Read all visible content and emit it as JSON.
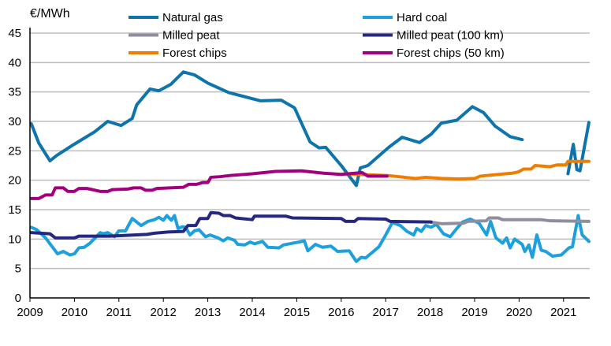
{
  "chart_data": {
    "type": "line",
    "ylabel": "€/MWh",
    "ylim": [
      0,
      45
    ],
    "yticks": [
      0,
      5,
      10,
      15,
      20,
      25,
      30,
      35,
      40,
      45
    ],
    "xlim": [
      2009,
      2021.6
    ],
    "xticks": [
      "2009",
      "2010",
      "2011",
      "2012",
      "2013",
      "2014",
      "2015",
      "2016",
      "2017",
      "2018",
      "2019",
      "2020",
      "2021"
    ],
    "grid": true,
    "legend_position": "top",
    "series": [
      {
        "name": "Natural gas",
        "color": "#0f74aa",
        "segments": [
          [
            [
              2009.03,
              29.6
            ],
            [
              2009.2,
              26.3
            ],
            [
              2009.45,
              23.3
            ],
            [
              2009.6,
              24.2
            ],
            [
              2009.97,
              26
            ],
            [
              2010.45,
              28.2
            ],
            [
              2010.75,
              30
            ],
            [
              2011.05,
              29.3
            ],
            [
              2011.3,
              30.5
            ],
            [
              2011.4,
              32.8
            ],
            [
              2011.7,
              35.5
            ],
            [
              2011.9,
              35.2
            ],
            [
              2012.17,
              36.3
            ],
            [
              2012.45,
              38.4
            ],
            [
              2012.7,
              37.9
            ],
            [
              2013.0,
              36.5
            ],
            [
              2013.47,
              34.9
            ],
            [
              2014.18,
              33.5
            ],
            [
              2014.65,
              33.6
            ],
            [
              2014.95,
              32.3
            ],
            [
              2015.3,
              26.5
            ],
            [
              2015.5,
              25.5
            ],
            [
              2015.65,
              25.6
            ],
            [
              2016.0,
              22.5
            ],
            [
              2016.34,
              19.1
            ],
            [
              2016.43,
              22.1
            ],
            [
              2016.6,
              22.5
            ],
            [
              2017.07,
              25.6
            ],
            [
              2017.37,
              27.3
            ],
            [
              2017.76,
              26.4
            ],
            [
              2018.02,
              27.8
            ],
            [
              2018.25,
              29.7
            ],
            [
              2018.6,
              30.2
            ],
            [
              2018.95,
              32.5
            ],
            [
              2019.2,
              31.5
            ],
            [
              2019.46,
              29.2
            ],
            [
              2019.8,
              27.4
            ],
            [
              2020.07,
              26.9
            ]
          ],
          [
            [
              2021.1,
              21.1
            ],
            [
              2021.22,
              26.1
            ],
            [
              2021.3,
              21.8
            ],
            [
              2021.37,
              21.6
            ],
            [
              2021.57,
              29.8
            ]
          ]
        ]
      },
      {
        "name": "Hard coal",
        "color": "#1ea0dc",
        "segments": [
          [
            [
              2009.03,
              12.0
            ],
            [
              2009.15,
              11.6
            ],
            [
              2009.35,
              10.2
            ],
            [
              2009.62,
              7.5
            ],
            [
              2009.75,
              7.9
            ],
            [
              2009.9,
              7.3
            ],
            [
              2010.0,
              7.5
            ],
            [
              2010.1,
              8.5
            ],
            [
              2010.22,
              8.6
            ],
            [
              2010.35,
              9.3
            ],
            [
              2010.58,
              11.1
            ],
            [
              2010.65,
              10.9
            ],
            [
              2010.75,
              11.1
            ],
            [
              2010.9,
              10.4
            ],
            [
              2011.0,
              11.4
            ],
            [
              2011.15,
              11.4
            ],
            [
              2011.3,
              13.5
            ],
            [
              2011.5,
              12.3
            ],
            [
              2011.65,
              13.0
            ],
            [
              2011.8,
              13.3
            ],
            [
              2011.9,
              13.7
            ],
            [
              2012.0,
              13.2
            ],
            [
              2012.08,
              14.0
            ],
            [
              2012.18,
              13.2
            ],
            [
              2012.25,
              14.0
            ],
            [
              2012.33,
              11.8
            ],
            [
              2012.43,
              12.1
            ],
            [
              2012.5,
              12.0
            ],
            [
              2012.6,
              10.7
            ],
            [
              2012.7,
              11.4
            ],
            [
              2012.8,
              11.6
            ],
            [
              2012.95,
              10.4
            ],
            [
              2013.05,
              10.7
            ],
            [
              2013.23,
              10.2
            ],
            [
              2013.35,
              9.7
            ],
            [
              2013.45,
              10.2
            ],
            [
              2013.6,
              9.8
            ],
            [
              2013.67,
              9.1
            ],
            [
              2013.83,
              9.0
            ],
            [
              2013.95,
              9.5
            ],
            [
              2014.05,
              9.2
            ],
            [
              2014.23,
              9.6
            ],
            [
              2014.35,
              8.6
            ],
            [
              2014.6,
              8.5
            ],
            [
              2014.7,
              9.0
            ],
            [
              2015.05,
              9.5
            ],
            [
              2015.17,
              9.7
            ],
            [
              2015.25,
              8.0
            ],
            [
              2015.42,
              9.1
            ],
            [
              2015.58,
              8.6
            ],
            [
              2015.77,
              8.8
            ],
            [
              2015.92,
              7.9
            ],
            [
              2016.18,
              8.0
            ],
            [
              2016.34,
              6.2
            ],
            [
              2016.45,
              6.9
            ],
            [
              2016.55,
              6.8
            ],
            [
              2016.85,
              8.7
            ],
            [
              2017.0,
              10.7
            ],
            [
              2017.15,
              12.8
            ],
            [
              2017.33,
              12.3
            ],
            [
              2017.48,
              11.3
            ],
            [
              2017.63,
              10.7
            ],
            [
              2017.7,
              11.8
            ],
            [
              2017.8,
              11.3
            ],
            [
              2017.9,
              12.3
            ],
            [
              2018.02,
              12.0
            ],
            [
              2018.14,
              12.5
            ],
            [
              2018.3,
              10.9
            ],
            [
              2018.45,
              10.4
            ],
            [
              2018.6,
              11.8
            ],
            [
              2018.73,
              12.9
            ],
            [
              2018.9,
              13.4
            ],
            [
              2019.1,
              12.7
            ],
            [
              2019.27,
              10.7
            ],
            [
              2019.36,
              13.0
            ],
            [
              2019.48,
              10.2
            ],
            [
              2019.63,
              9.3
            ],
            [
              2019.72,
              10.2
            ],
            [
              2019.8,
              8.5
            ],
            [
              2019.9,
              10.0
            ],
            [
              2020.07,
              9.1
            ],
            [
              2020.13,
              7.9
            ],
            [
              2020.22,
              9.0
            ],
            [
              2020.3,
              6.9
            ],
            [
              2020.4,
              10.7
            ],
            [
              2020.5,
              8.1
            ],
            [
              2020.6,
              7.9
            ],
            [
              2020.75,
              7.1
            ],
            [
              2020.95,
              7.3
            ],
            [
              2021.12,
              8.5
            ],
            [
              2021.2,
              8.7
            ],
            [
              2021.33,
              14.0
            ],
            [
              2021.42,
              10.7
            ],
            [
              2021.57,
              9.6
            ]
          ]
        ]
      },
      {
        "name": "Milled peat",
        "color": "#8e8e9e",
        "segments": [
          [
            [
              2018.0,
              12.9
            ],
            [
              2018.27,
              12.6
            ],
            [
              2018.75,
              12.7
            ],
            [
              2018.85,
              13.0
            ],
            [
              2019.26,
              13.1
            ],
            [
              2019.33,
              13.6
            ],
            [
              2019.53,
              13.6
            ],
            [
              2019.63,
              13.3
            ],
            [
              2020.48,
              13.3
            ],
            [
              2020.7,
              13.1
            ],
            [
              2021.57,
              13.0
            ]
          ]
        ]
      },
      {
        "name": "Milled peat (100 km)",
        "color": "#25287e",
        "segments": [
          [
            [
              2009.03,
              11.1
            ],
            [
              2009.45,
              10.9
            ],
            [
              2009.57,
              10.2
            ],
            [
              2010.0,
              10.2
            ],
            [
              2010.1,
              10.5
            ],
            [
              2010.8,
              10.5
            ],
            [
              2011.63,
              10.8
            ],
            [
              2011.8,
              11.0
            ],
            [
              2012.1,
              11.2
            ],
            [
              2012.45,
              11.3
            ],
            [
              2012.55,
              12.3
            ],
            [
              2012.73,
              12.3
            ],
            [
              2012.82,
              13.5
            ],
            [
              2013.0,
              13.5
            ],
            [
              2013.07,
              14.5
            ],
            [
              2013.25,
              14.4
            ],
            [
              2013.35,
              14.0
            ],
            [
              2013.5,
              14.0
            ],
            [
              2013.62,
              13.6
            ],
            [
              2014.0,
              13.3
            ],
            [
              2014.05,
              13.9
            ],
            [
              2014.75,
              13.9
            ],
            [
              2014.9,
              13.6
            ],
            [
              2016.0,
              13.5
            ],
            [
              2016.1,
              13.0
            ],
            [
              2016.3,
              13.0
            ],
            [
              2016.38,
              13.5
            ],
            [
              2017.0,
              13.4
            ],
            [
              2017.1,
              13.0
            ],
            [
              2018.02,
              12.9
            ]
          ]
        ]
      },
      {
        "name": "Forest chips",
        "color": "#ef7d00",
        "segments": [
          [
            [
              2016.07,
              21.1
            ],
            [
              2017.05,
              20.8
            ],
            [
              2017.67,
              20.3
            ],
            [
              2017.9,
              20.5
            ],
            [
              2018.25,
              20.3
            ],
            [
              2018.65,
              20.2
            ],
            [
              2019.0,
              20.3
            ],
            [
              2019.13,
              20.7
            ],
            [
              2019.55,
              21.0
            ],
            [
              2019.85,
              21.2
            ],
            [
              2019.98,
              21.4
            ],
            [
              2020.1,
              21.9
            ],
            [
              2020.27,
              21.9
            ],
            [
              2020.36,
              22.5
            ],
            [
              2020.7,
              22.3
            ],
            [
              2020.85,
              22.6
            ],
            [
              2021.05,
              22.6
            ],
            [
              2021.1,
              23.2
            ],
            [
              2021.57,
              23.2
            ]
          ]
        ]
      },
      {
        "name": "Forest chips (50 km)",
        "color": "#a1007e",
        "segments": [
          [
            [
              2009.03,
              16.9
            ],
            [
              2009.2,
              16.9
            ],
            [
              2009.35,
              17.5
            ],
            [
              2009.5,
              17.5
            ],
            [
              2009.57,
              18.7
            ],
            [
              2009.75,
              18.7
            ],
            [
              2009.85,
              18.1
            ],
            [
              2010.0,
              18.1
            ],
            [
              2010.1,
              18.6
            ],
            [
              2010.28,
              18.6
            ],
            [
              2010.58,
              18.1
            ],
            [
              2010.75,
              18.1
            ],
            [
              2010.85,
              18.4
            ],
            [
              2011.2,
              18.5
            ],
            [
              2011.33,
              18.7
            ],
            [
              2011.5,
              18.7
            ],
            [
              2011.6,
              18.3
            ],
            [
              2011.75,
              18.3
            ],
            [
              2011.85,
              18.6
            ],
            [
              2012.45,
              18.8
            ],
            [
              2012.57,
              19.3
            ],
            [
              2012.75,
              19.3
            ],
            [
              2012.88,
              19.6
            ],
            [
              2013.0,
              19.6
            ],
            [
              2013.07,
              20.5
            ],
            [
              2013.27,
              20.6
            ],
            [
              2013.5,
              20.8
            ],
            [
              2014.0,
              21.1
            ],
            [
              2014.52,
              21.5
            ],
            [
              2015.1,
              21.6
            ],
            [
              2015.6,
              21.2
            ],
            [
              2016.0,
              21.0
            ],
            [
              2016.47,
              21.3
            ],
            [
              2016.6,
              20.7
            ],
            [
              2017.03,
              20.7
            ]
          ]
        ]
      }
    ]
  }
}
